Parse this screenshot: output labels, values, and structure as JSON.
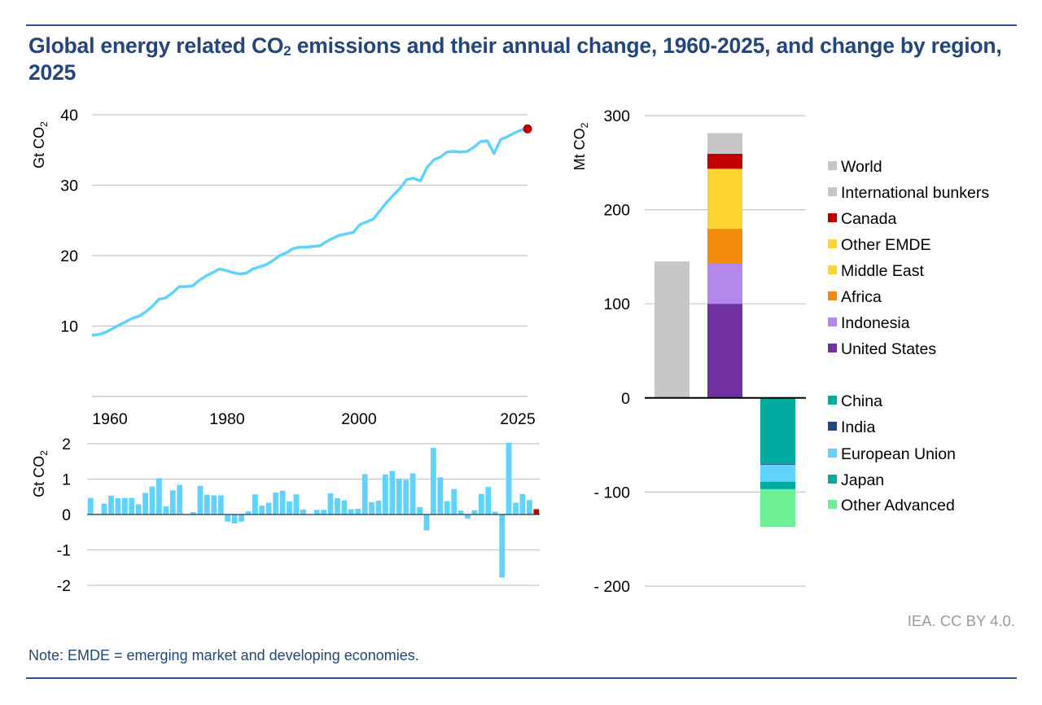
{
  "header": {
    "title_part1": "Global energy related CO",
    "title_sub": "2",
    "title_part2": " emissions and their annual change, 1960-2025, and change by region, 2025"
  },
  "footer": {
    "note": "Note: EMDE = emerging market and developing economies.",
    "credit": "IEA. CC BY 4.0."
  },
  "colors": {
    "rule": "#2e5592",
    "title": "#23467c",
    "line": "#5fd3fb",
    "highlight": "#c00000",
    "grid": "#c8c8c8"
  },
  "chart_data": [
    {
      "id": "emissions-line",
      "type": "line",
      "title": "Global energy related CO2 emissions",
      "ylabel": "Gt CO2",
      "ylim": [
        0,
        40
      ],
      "yticks": [
        10,
        20,
        30,
        40
      ],
      "grid": true,
      "xticks": [
        "1960",
        "1980",
        "2000",
        "2025"
      ],
      "x_start": 1960,
      "x_end": 2025,
      "highlight_point": {
        "x": 2025,
        "y": 38.0
      },
      "series": [
        {
          "name": "Global emissions",
          "values": [
            8.7,
            8.8,
            9.1,
            9.6,
            10.1,
            10.6,
            11.1,
            11.4,
            12.0,
            12.8,
            13.8,
            14.0,
            14.7,
            15.6,
            15.6,
            15.7,
            16.5,
            17.1,
            17.6,
            18.1,
            17.9,
            17.6,
            17.4,
            17.5,
            18.1,
            18.4,
            18.7,
            19.3,
            20.0,
            20.4,
            21.0,
            21.2,
            21.2,
            21.3,
            21.4,
            22.0,
            22.5,
            22.9,
            23.1,
            23.3,
            24.4,
            24.8,
            25.2,
            26.4,
            27.6,
            28.6,
            29.6,
            30.8,
            31.0,
            30.6,
            32.5,
            33.6,
            34.0,
            34.7,
            34.8,
            34.7,
            34.8,
            35.4,
            36.2,
            36.3,
            34.5,
            36.5,
            36.9,
            37.4,
            37.8,
            38.0
          ]
        }
      ]
    },
    {
      "id": "annual-change-bars",
      "type": "bar",
      "title": "Annual change",
      "ylabel": "Gt CO2",
      "ylim": [
        -2,
        2
      ],
      "yticks": [
        2,
        1,
        0,
        -1,
        -2
      ],
      "grid": true,
      "x_start": 1960,
      "x_end": 2025,
      "highlight_year": 2025,
      "values": [
        0.47,
        0.02,
        0.31,
        0.53,
        0.46,
        0.47,
        0.47,
        0.29,
        0.61,
        0.79,
        1.02,
        0.23,
        0.68,
        0.84,
        -0.01,
        0.07,
        0.81,
        0.56,
        0.54,
        0.54,
        -0.2,
        -0.25,
        -0.2,
        0.09,
        0.57,
        0.25,
        0.33,
        0.62,
        0.67,
        0.37,
        0.57,
        0.14,
        0.01,
        0.13,
        0.13,
        0.6,
        0.46,
        0.4,
        0.15,
        0.16,
        1.14,
        0.35,
        0.39,
        1.13,
        1.23,
        1.01,
        0.98,
        1.16,
        0.21,
        -0.45,
        1.88,
        1.05,
        0.38,
        0.72,
        0.11,
        -0.12,
        0.12,
        0.58,
        0.78,
        0.08,
        -1.78,
        2.03,
        0.33,
        0.58,
        0.41,
        0.15
      ]
    },
    {
      "id": "regional-change",
      "type": "bar",
      "title": "Change by region, 2025",
      "ylabel": "Mt CO2",
      "ylim": [
        -200,
        300
      ],
      "yticks": [
        300,
        200,
        100,
        0,
        -100,
        -200
      ],
      "ytick_labels": [
        "300",
        "200",
        "100",
        "0",
        "- 100",
        "- 200"
      ],
      "grid": true,
      "legend_position": "right",
      "columns": [
        {
          "segments": [
            {
              "name": "World",
              "value": 145,
              "color": "#c6c7c9"
            }
          ]
        },
        {
          "segments": [
            {
              "name": "United States",
              "value": 100,
              "color": "#7030a0"
            },
            {
              "name": "Indonesia",
              "value": 43,
              "color": "#b387eb"
            },
            {
              "name": "Africa",
              "value": 37,
              "color": "#f38b0b"
            },
            {
              "name": "Middle East",
              "value": 0.5,
              "color": "#fdd52e"
            },
            {
              "name": "Other EMDE",
              "value": 63,
              "color": "#fdd52e"
            },
            {
              "name": "Canada",
              "value": 16,
              "color": "#c00000"
            },
            {
              "name": "International bunkers",
              "value": 22,
              "color": "#c6c7c9"
            }
          ]
        },
        {
          "segments": [
            {
              "name": "China",
              "value": -70,
              "color": "#00aba0"
            },
            {
              "name": "India",
              "value": -1,
              "color": "#23467c"
            },
            {
              "name": "European Union",
              "value": -18,
              "color": "#5fd3fb"
            },
            {
              "name": "Japan",
              "value": -8,
              "color": "#00aba0"
            },
            {
              "name": "Other Advanced",
              "value": -40,
              "color": "#6ef196"
            }
          ]
        }
      ],
      "legend": [
        {
          "name": "World",
          "color": "#c6c7c9"
        },
        {
          "name": "International bunkers",
          "color": "#c6c7c9"
        },
        {
          "name": "Canada",
          "color": "#c00000"
        },
        {
          "name": "Other EMDE",
          "color": "#fdd52e"
        },
        {
          "name": "Middle East",
          "color": "#fdd52e"
        },
        {
          "name": "Africa",
          "color": "#f38b0b"
        },
        {
          "name": "Indonesia",
          "color": "#b387eb"
        },
        {
          "name": "United States",
          "color": "#7030a0"
        },
        {
          "name": "China",
          "color": "#00aba0"
        },
        {
          "name": "India",
          "color": "#23467c"
        },
        {
          "name": "European Union",
          "color": "#5fd3fb"
        },
        {
          "name": "Japan",
          "color": "#00aba0"
        },
        {
          "name": "Other Advanced",
          "color": "#6ef196"
        }
      ]
    }
  ]
}
